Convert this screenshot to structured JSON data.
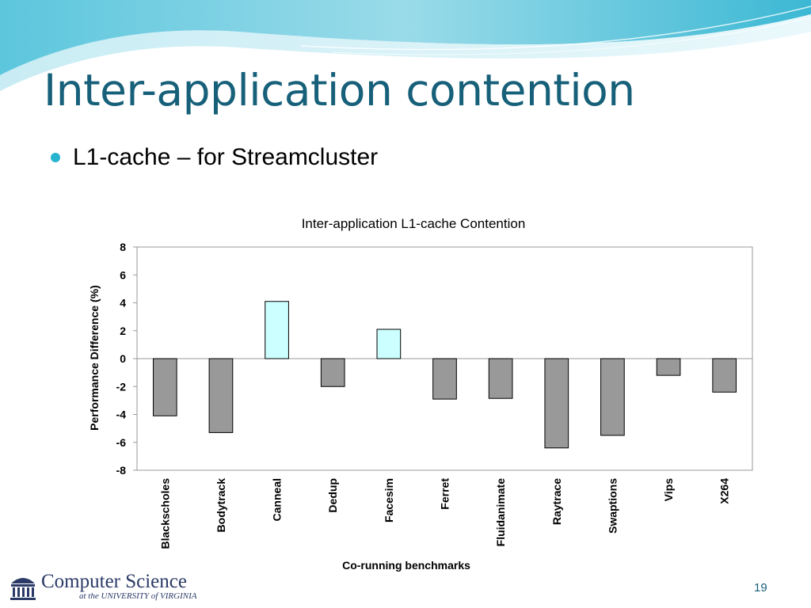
{
  "slide": {
    "title": "Inter-application contention",
    "bullet": "L1-cache – for Streamcluster",
    "page_number": "19"
  },
  "footer": {
    "logo_line1": "Computer Science",
    "logo_line2": "at the UNIVERSITY of VIRGINIA"
  },
  "colors": {
    "title": "#17607a",
    "bullet": "#27b4cf",
    "negative_bar": "#999999",
    "positive_bar": "#ccffff",
    "logo": "#2b3a67"
  },
  "chart_data": {
    "type": "bar",
    "title": "Inter-application L1-cache Contention",
    "xlabel": "Co-running benchmarks",
    "ylabel": "Performance Difference (%)",
    "ylim": [
      -8,
      8
    ],
    "yticks": [
      8,
      6,
      4,
      2,
      0,
      -2,
      -4,
      -6,
      -8
    ],
    "categories": [
      "Blackscholes",
      "Bodytrack",
      "Canneal",
      "Dedup",
      "Facesim",
      "Ferret",
      "Fluidanimate",
      "Raytrace",
      "Swaptions",
      "Vips",
      "X264"
    ],
    "values": [
      -4.1,
      -5.3,
      4.1,
      -2.0,
      2.1,
      -2.9,
      -2.85,
      -6.4,
      -5.5,
      -1.2,
      -2.4
    ],
    "grid": false,
    "legend": "none"
  }
}
